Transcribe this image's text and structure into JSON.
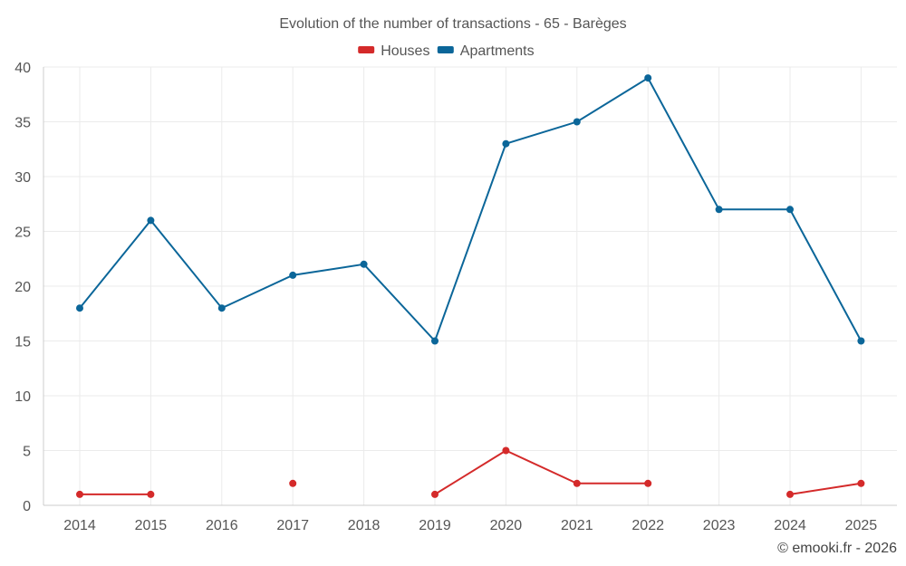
{
  "chart_data": {
    "type": "line",
    "title": "Evolution of the number of transactions - 65 - Barèges",
    "categories": [
      "2014",
      "2015",
      "2016",
      "2017",
      "2018",
      "2019",
      "2020",
      "2021",
      "2022",
      "2023",
      "2024",
      "2025"
    ],
    "ylim": [
      0,
      40
    ],
    "yticks": [
      0,
      5,
      10,
      15,
      20,
      25,
      30,
      35,
      40
    ],
    "grid": true,
    "legend_position": "top-center",
    "series": [
      {
        "name": "Houses",
        "color": "#d42a2a",
        "values": [
          1,
          1,
          null,
          2,
          null,
          1,
          5,
          2,
          2,
          null,
          1,
          2
        ]
      },
      {
        "name": "Apartments",
        "color": "#0b6699",
        "values": [
          18,
          26,
          18,
          21,
          22,
          15,
          33,
          35,
          39,
          27,
          27,
          15
        ]
      }
    ]
  },
  "credit": "© emooki.fr - 2026"
}
